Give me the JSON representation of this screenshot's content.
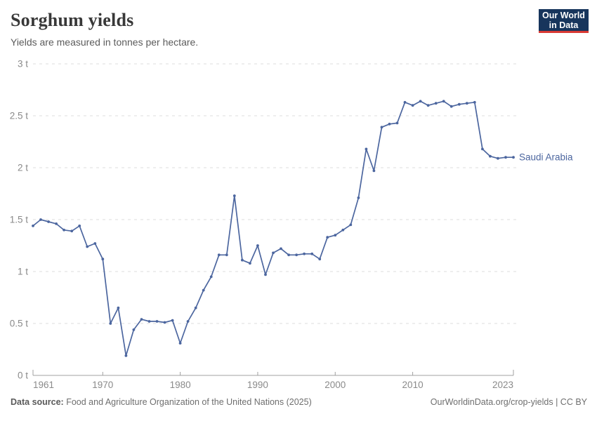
{
  "header": {
    "title": "Sorghum yields",
    "subtitle": "Yields are measured in tonnes per hectare."
  },
  "logo": {
    "line1": "Our World",
    "line2": "in Data",
    "bg_color": "#17355c",
    "accent_color": "#d93a34"
  },
  "colors": {
    "line": "#4c669f",
    "grid": "#dcdcdc",
    "axis": "#a0a0a0",
    "tick_text": "#8a8a8a"
  },
  "chart_data": {
    "type": "line",
    "title": "Sorghum yields",
    "subtitle": "Yields are measured in tonnes per hectare.",
    "unit": "tonnes per hectare",
    "grid": "horizontal dashed",
    "legend_position": "label at end of line",
    "ylim": [
      0,
      3
    ],
    "xlim": [
      1961,
      2023
    ],
    "yticks": [
      {
        "v": 0,
        "label": "0 t"
      },
      {
        "v": 0.5,
        "label": "0.5 t"
      },
      {
        "v": 1,
        "label": "1 t"
      },
      {
        "v": 1.5,
        "label": "1.5 t"
      },
      {
        "v": 2,
        "label": "2 t"
      },
      {
        "v": 2.5,
        "label": "2.5 t"
      },
      {
        "v": 3,
        "label": "3 t"
      }
    ],
    "xticks": [
      {
        "v": 1961,
        "label": "1961"
      },
      {
        "v": 1970,
        "label": "1970"
      },
      {
        "v": 1980,
        "label": "1980"
      },
      {
        "v": 1990,
        "label": "1990"
      },
      {
        "v": 2000,
        "label": "2000"
      },
      {
        "v": 2010,
        "label": "2010"
      },
      {
        "v": 2023,
        "label": "2023"
      }
    ],
    "x": [
      1961,
      1962,
      1963,
      1964,
      1965,
      1966,
      1967,
      1968,
      1969,
      1970,
      1971,
      1972,
      1973,
      1974,
      1975,
      1976,
      1977,
      1978,
      1979,
      1980,
      1981,
      1982,
      1983,
      1984,
      1985,
      1986,
      1987,
      1988,
      1989,
      1990,
      1991,
      1992,
      1993,
      1994,
      1995,
      1996,
      1997,
      1998,
      1999,
      2000,
      2001,
      2002,
      2003,
      2004,
      2005,
      2006,
      2007,
      2008,
      2009,
      2010,
      2011,
      2012,
      2013,
      2014,
      2015,
      2016,
      2017,
      2018,
      2019,
      2020,
      2021,
      2022,
      2023
    ],
    "series": [
      {
        "name": "Saudi Arabia",
        "values": [
          1.44,
          1.5,
          1.48,
          1.46,
          1.4,
          1.39,
          1.44,
          1.24,
          1.27,
          1.12,
          0.5,
          0.65,
          0.19,
          0.44,
          0.54,
          0.52,
          0.52,
          0.51,
          0.53,
          0.31,
          0.52,
          0.65,
          0.82,
          0.95,
          1.16,
          1.16,
          1.73,
          1.11,
          1.08,
          1.25,
          0.97,
          1.18,
          1.22,
          1.16,
          1.16,
          1.17,
          1.17,
          1.12,
          1.33,
          1.35,
          1.4,
          1.45,
          1.71,
          2.18,
          1.97,
          2.39,
          2.42,
          2.43,
          2.63,
          2.6,
          2.64,
          2.6,
          2.62,
          2.64,
          2.59,
          2.61,
          2.62,
          2.63,
          2.18,
          2.11,
          2.09,
          2.1,
          2.1
        ]
      }
    ]
  },
  "footer": {
    "source_label": "Data source:",
    "source_text": "Food and Agriculture Organization of the United Nations (2025)",
    "link_text": "OurWorldinData.org/crop-yields | CC BY"
  }
}
